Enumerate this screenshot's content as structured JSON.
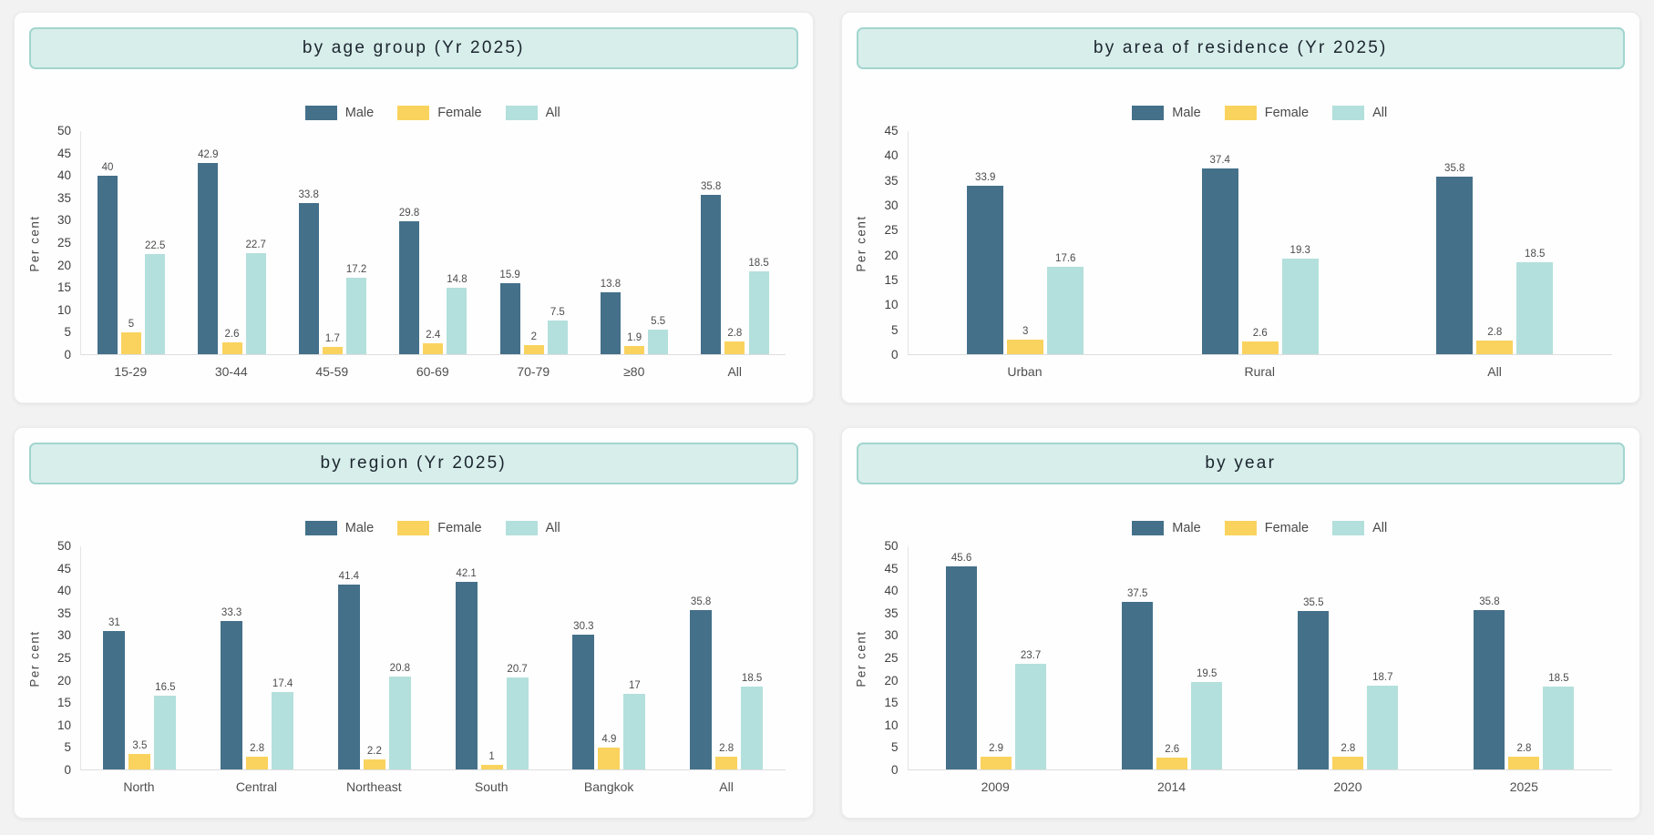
{
  "page": {
    "background": "#f2f2f3"
  },
  "colors": {
    "male": "#44708a",
    "female": "#fad35e",
    "all": "#b3e0dc",
    "title_bg": "#d8eeeb",
    "title_border": "#a2d5cf"
  },
  "chart_data": [
    {
      "id": "age-group",
      "type": "bar",
      "title": "by age group (Yr 2025)",
      "ylabel": "Per cent",
      "ylim": [
        0,
        50
      ],
      "ytick_step": 5,
      "grid": false,
      "legend_position": "top-center",
      "categories": [
        "15-29",
        "30-44",
        "45-59",
        "60-69",
        "70-79",
        "≥80",
        "All"
      ],
      "series": [
        {
          "name": "Male",
          "color_key": "male",
          "values": [
            40,
            42.9,
            33.8,
            29.8,
            15.9,
            13.8,
            35.8
          ]
        },
        {
          "name": "Female",
          "color_key": "female",
          "values": [
            5,
            2.6,
            1.7,
            2.4,
            2,
            1.9,
            2.8
          ]
        },
        {
          "name": "All",
          "color_key": "all",
          "values": [
            22.5,
            22.7,
            17.2,
            14.8,
            7.5,
            5.5,
            18.5
          ]
        }
      ]
    },
    {
      "id": "area-of-residence",
      "type": "bar",
      "title": "by area of residence (Yr 2025)",
      "ylabel": "Per cent",
      "ylim": [
        0,
        45
      ],
      "ytick_step": 5,
      "grid": false,
      "legend_position": "top-center",
      "categories": [
        "Urban",
        "Rural",
        "All"
      ],
      "series": [
        {
          "name": "Male",
          "color_key": "male",
          "values": [
            33.9,
            37.4,
            35.8
          ]
        },
        {
          "name": "Female",
          "color_key": "female",
          "values": [
            3,
            2.6,
            2.8
          ]
        },
        {
          "name": "All",
          "color_key": "all",
          "values": [
            17.6,
            19.3,
            18.5
          ]
        }
      ]
    },
    {
      "id": "region",
      "type": "bar",
      "title": "by region (Yr 2025)",
      "ylabel": "Per cent",
      "ylim": [
        0,
        50
      ],
      "ytick_step": 5,
      "grid": false,
      "legend_position": "top-center",
      "categories": [
        "North",
        "Central",
        "Northeast",
        "South",
        "Bangkok",
        "All"
      ],
      "series": [
        {
          "name": "Male",
          "color_key": "male",
          "values": [
            31,
            33.3,
            41.4,
            42.1,
            30.3,
            35.8
          ]
        },
        {
          "name": "Female",
          "color_key": "female",
          "values": [
            3.5,
            2.8,
            2.2,
            1,
            4.9,
            2.8
          ]
        },
        {
          "name": "All",
          "color_key": "all",
          "values": [
            16.5,
            17.4,
            20.8,
            20.7,
            17,
            18.5
          ]
        }
      ]
    },
    {
      "id": "year",
      "type": "bar",
      "title": "by year",
      "ylabel": "Per cent",
      "ylim": [
        0,
        50
      ],
      "ytick_step": 5,
      "grid": false,
      "legend_position": "top-center",
      "categories": [
        "2009",
        "2014",
        "2020",
        "2025"
      ],
      "series": [
        {
          "name": "Male",
          "color_key": "male",
          "values": [
            45.6,
            37.5,
            35.5,
            35.8
          ]
        },
        {
          "name": "Female",
          "color_key": "female",
          "values": [
            2.9,
            2.6,
            2.8,
            2.8
          ]
        },
        {
          "name": "All",
          "color_key": "all",
          "values": [
            23.7,
            19.5,
            18.7,
            18.5
          ]
        }
      ]
    }
  ]
}
